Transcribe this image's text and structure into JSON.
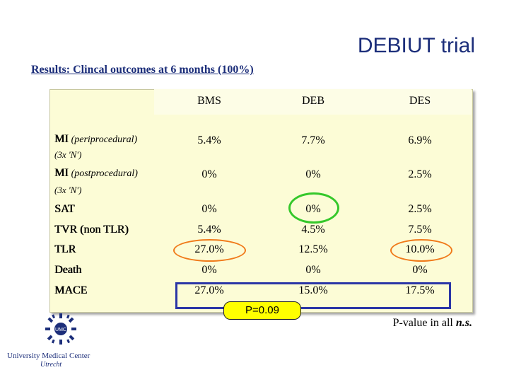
{
  "title": "DEBIUT trial",
  "subtitle": "Results: Clincal outcomes at 6 months (100%)",
  "columns": [
    "BMS",
    "DEB",
    "DES"
  ],
  "rows": [
    {
      "label": "MI",
      "qualifier": "(periprocedural)",
      "sub": "(3x 'N')",
      "values": [
        "5.4%",
        "7.7%",
        "6.9%"
      ]
    },
    {
      "label": "MI",
      "qualifier": "(postprocedural)",
      "sub": "(3x 'N')",
      "values": [
        "0%",
        "0%",
        "2.5%"
      ]
    },
    {
      "label": "SAT",
      "qualifier": "",
      "sub": "",
      "values": [
        "0%",
        "0%",
        "2.5%"
      ]
    },
    {
      "label": "TVR (non TLR)",
      "qualifier": "",
      "sub": "",
      "values": [
        "5.4%",
        "4.5%",
        "7.5%"
      ]
    },
    {
      "label": "TLR",
      "qualifier": "",
      "sub": "",
      "values": [
        "27.0%",
        "12.5%",
        "10.0%"
      ]
    },
    {
      "label": "Death",
      "qualifier": "",
      "sub": "",
      "values": [
        "0%",
        "0%",
        "0%"
      ]
    },
    {
      "label": "MACE",
      "qualifier": "",
      "sub": "",
      "values": [
        "27.0%",
        "15.0%",
        "17.5%"
      ]
    }
  ],
  "p_badge": "P=0.09",
  "p_note": {
    "prefix": "P-value in all ",
    "emphasis": "n.s."
  },
  "logo": {
    "line1": "University Medical Center",
    "line2": "Utrecht",
    "badge": "UMC"
  },
  "colors": {
    "title": "#1c2e7a",
    "table_bg": "#fcfcd6",
    "highlight_rect": "#2a35a6",
    "green_circle": "#35c82b",
    "orange_circle": "#f07a1a",
    "badge_bg": "#ffff00"
  }
}
